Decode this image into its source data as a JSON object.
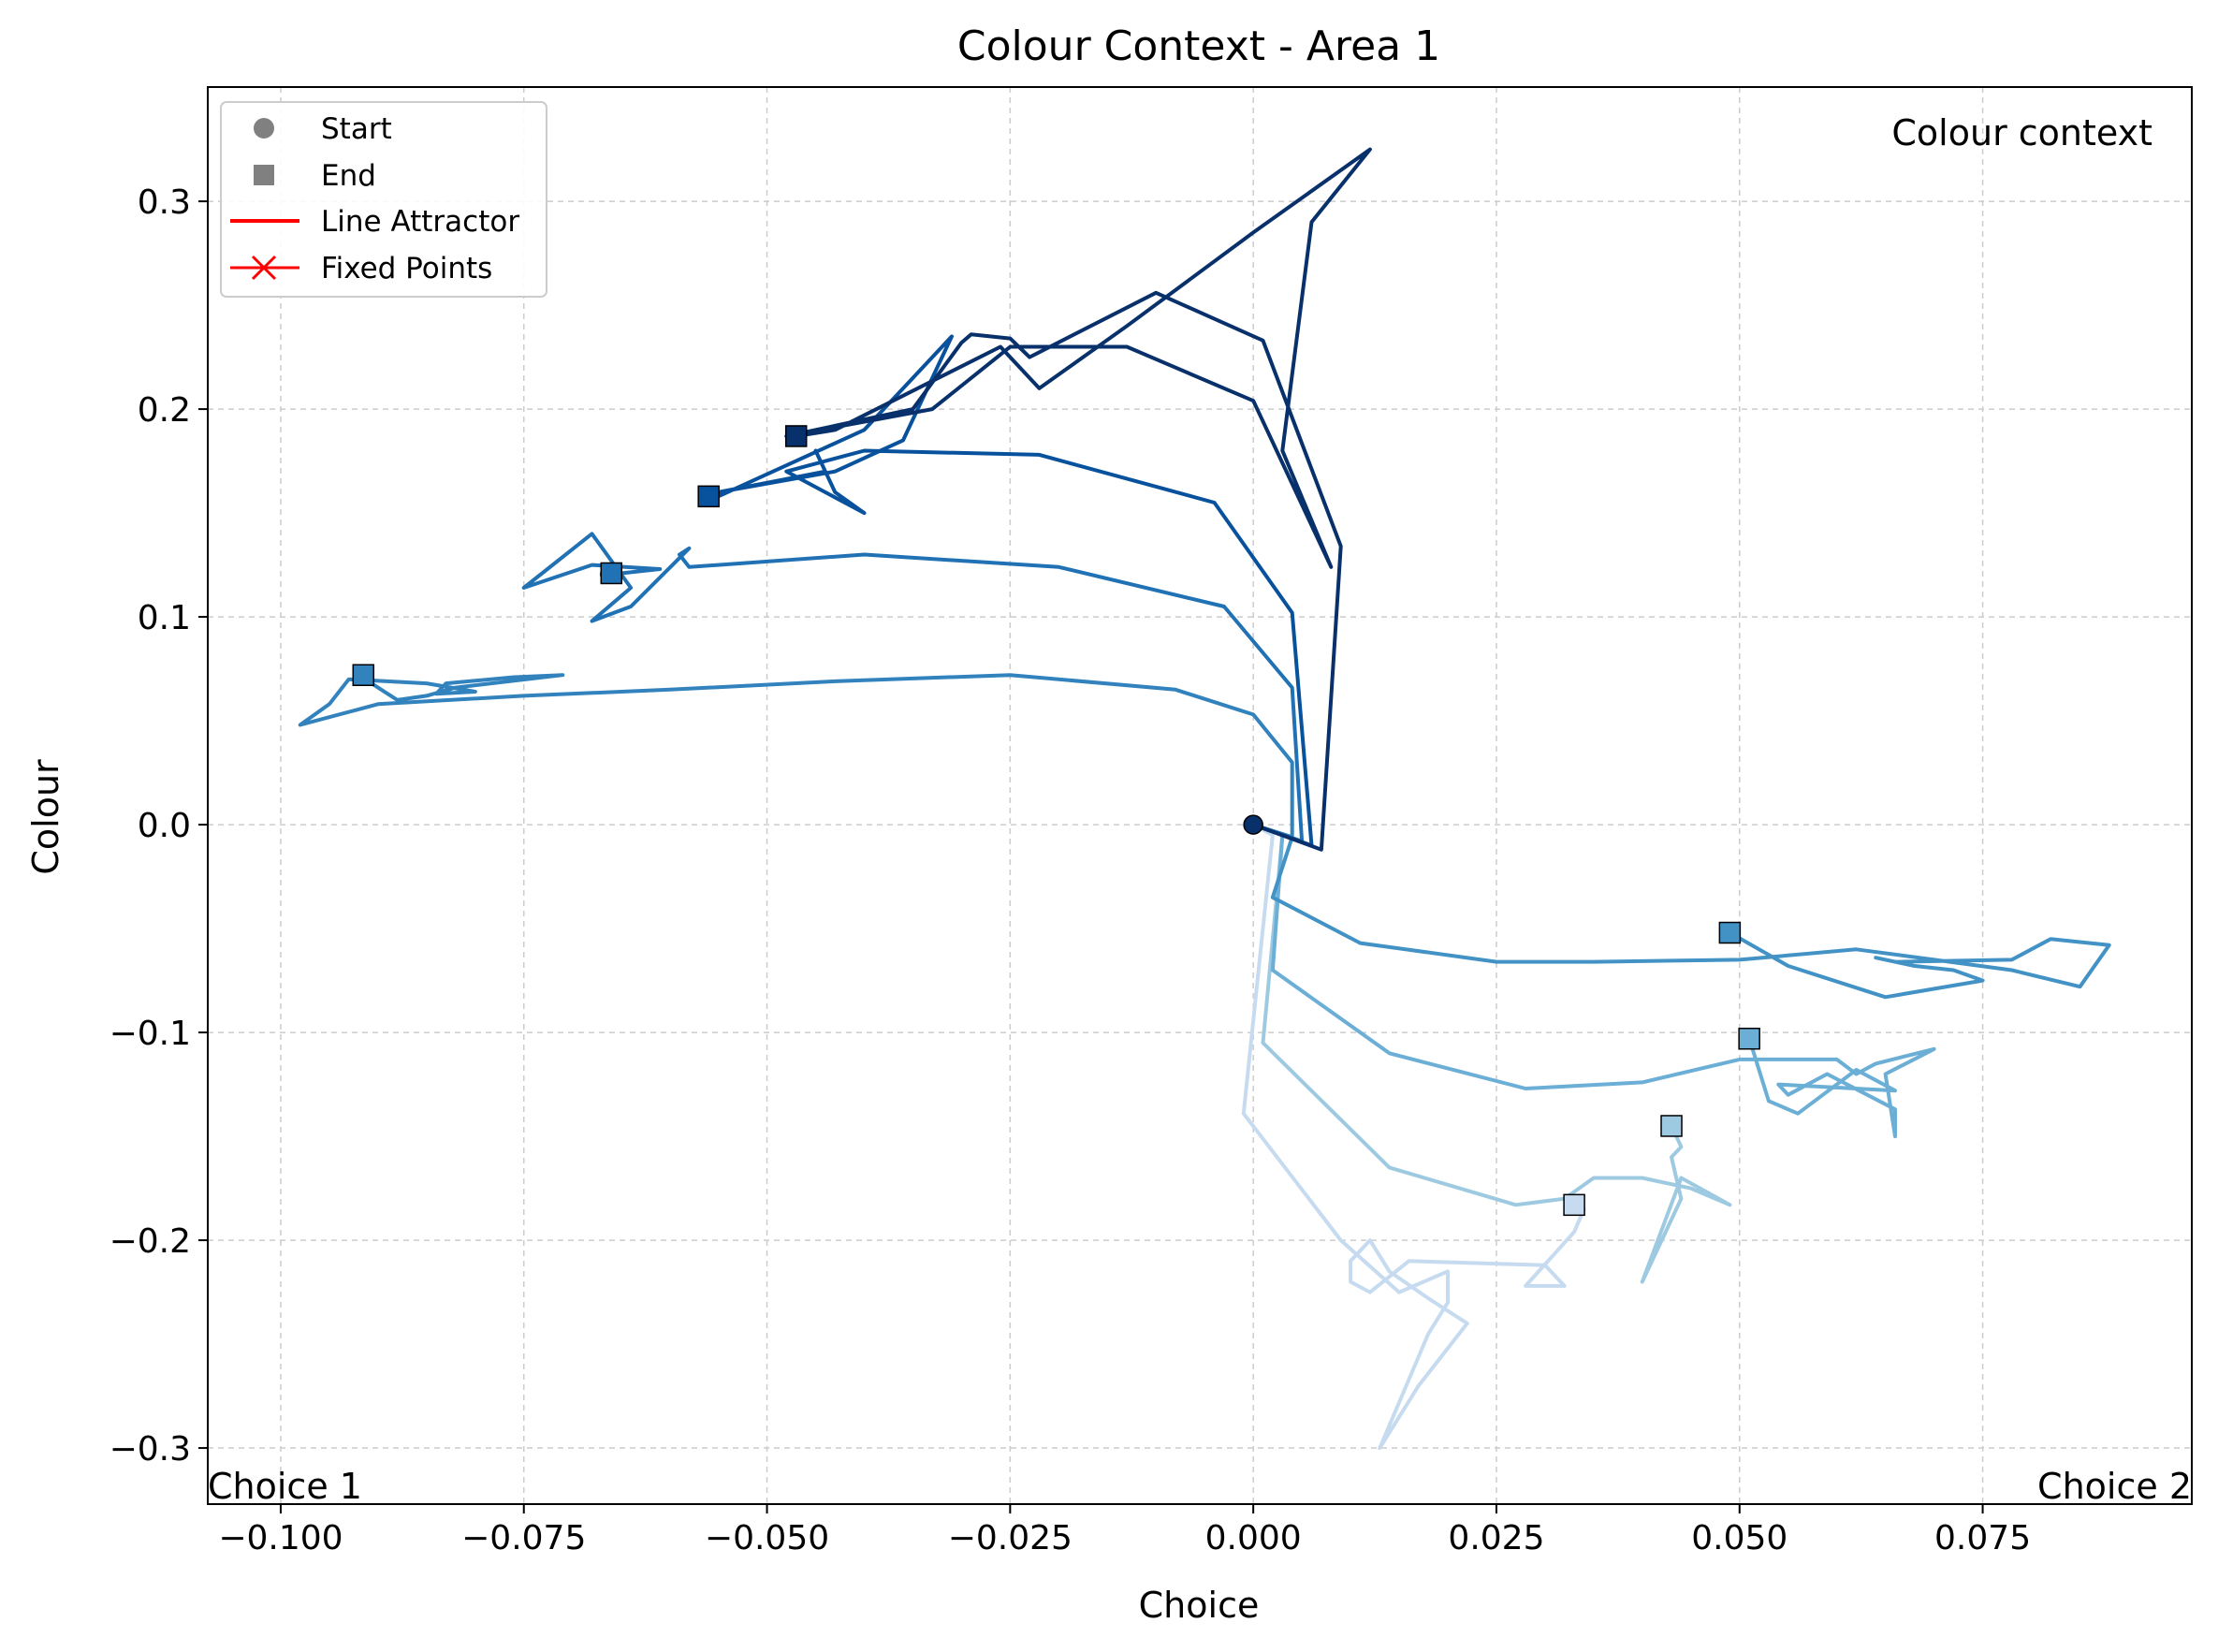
{
  "chart_data": {
    "type": "line",
    "title": "Colour Context - Area 1",
    "xlabel": "Choice",
    "ylabel": "Colour",
    "xlim": [
      -0.1075,
      0.0965
    ],
    "ylim": [
      -0.327,
      0.355
    ],
    "xticks": [
      -0.1,
      -0.075,
      -0.05,
      -0.025,
      0.0,
      0.025,
      0.05,
      0.075
    ],
    "xtick_labels": [
      "−0.100",
      "−0.075",
      "−0.050",
      "−0.025",
      "0.000",
      "0.025",
      "0.050",
      "0.075"
    ],
    "yticks": [
      -0.3,
      -0.2,
      -0.1,
      0.0,
      0.1,
      0.2,
      0.3
    ],
    "ytick_labels": [
      "−0.3",
      "−0.2",
      "−0.1",
      "0.0",
      "0.1",
      "0.2",
      "0.3"
    ],
    "grid": true,
    "legend_position": "top-left",
    "legend": [
      {
        "label": "Start",
        "marker": "circle",
        "color": "#808080"
      },
      {
        "label": "End",
        "marker": "square",
        "color": "#808080"
      },
      {
        "label": "Line Attractor",
        "marker": "line",
        "color": "#ff0000"
      },
      {
        "label": "Fixed Points",
        "marker": "x-line",
        "color": "#ff0000"
      }
    ],
    "annotations": {
      "context": "Colour context",
      "choice1": "Choice 1",
      "choice2": "Choice 2"
    },
    "start_point": [
      0.0,
      0.0
    ],
    "series": [
      {
        "color": "#08306b",
        "points": [
          [
            0.0,
            0.0
          ],
          [
            0.007,
            -0.012
          ],
          [
            0.009,
            0.134
          ],
          [
            0.001,
            0.233
          ],
          [
            -0.01,
            0.256
          ],
          [
            -0.023,
            0.225
          ],
          [
            -0.025,
            0.234
          ],
          [
            -0.029,
            0.236
          ],
          [
            -0.03,
            0.232
          ],
          [
            -0.035,
            0.2
          ],
          [
            -0.048,
            0.187
          ],
          [
            -0.033,
            0.2
          ],
          [
            -0.025,
            0.23
          ],
          [
            -0.013,
            0.23
          ],
          [
            0.0,
            0.204
          ],
          [
            0.008,
            0.124
          ],
          [
            0.003,
            0.18
          ],
          [
            0.006,
            0.29
          ],
          [
            0.012,
            0.325
          ],
          [
            0.0,
            0.285
          ],
          [
            -0.013,
            0.24
          ],
          [
            -0.022,
            0.21
          ],
          [
            -0.026,
            0.23
          ],
          [
            -0.043,
            0.19
          ],
          [
            -0.047,
            0.187
          ]
        ]
      },
      {
        "color": "#08519c",
        "points": [
          [
            0.0,
            0.0
          ],
          [
            0.006,
            -0.01
          ],
          [
            0.004,
            0.102
          ],
          [
            -0.004,
            0.155
          ],
          [
            -0.022,
            0.178
          ],
          [
            -0.04,
            0.18
          ],
          [
            -0.048,
            0.17
          ],
          [
            -0.04,
            0.15
          ],
          [
            -0.043,
            0.16
          ],
          [
            -0.045,
            0.18
          ],
          [
            -0.044,
            0.17
          ],
          [
            -0.055,
            0.16
          ],
          [
            -0.043,
            0.17
          ],
          [
            -0.036,
            0.185
          ],
          [
            -0.031,
            0.235
          ],
          [
            -0.04,
            0.19
          ],
          [
            -0.055,
            0.158
          ],
          [
            -0.056,
            0.158
          ]
        ]
      },
      {
        "color": "#2171b5",
        "points": [
          [
            0.0,
            0.0
          ],
          [
            0.005,
            -0.008
          ],
          [
            0.004,
            0.066
          ],
          [
            -0.003,
            0.105
          ],
          [
            -0.02,
            0.124
          ],
          [
            -0.04,
            0.13
          ],
          [
            -0.058,
            0.124
          ],
          [
            -0.059,
            0.13
          ],
          [
            -0.058,
            0.133
          ],
          [
            -0.064,
            0.105
          ],
          [
            -0.068,
            0.098
          ],
          [
            -0.064,
            0.114
          ],
          [
            -0.068,
            0.14
          ],
          [
            -0.075,
            0.114
          ],
          [
            -0.068,
            0.125
          ],
          [
            -0.061,
            0.123
          ],
          [
            -0.067,
            0.12
          ],
          [
            -0.067,
            0.121
          ],
          [
            -0.066,
            0.121
          ]
        ]
      },
      {
        "color": "#3182bd",
        "points": [
          [
            0.0,
            0.0
          ],
          [
            0.004,
            -0.006
          ],
          [
            0.004,
            0.03
          ],
          [
            -0.0,
            0.053
          ],
          [
            -0.008,
            0.065
          ],
          [
            -0.025,
            0.072
          ],
          [
            -0.043,
            0.069
          ],
          [
            -0.06,
            0.065
          ],
          [
            -0.075,
            0.062
          ],
          [
            -0.09,
            0.058
          ],
          [
            -0.098,
            0.048
          ],
          [
            -0.095,
            0.058
          ],
          [
            -0.093,
            0.07
          ],
          [
            -0.085,
            0.068
          ],
          [
            -0.08,
            0.064
          ],
          [
            -0.084,
            0.063
          ],
          [
            -0.083,
            0.068
          ],
          [
            -0.076,
            0.071
          ],
          [
            -0.071,
            0.072
          ],
          [
            -0.082,
            0.066
          ],
          [
            -0.085,
            0.062
          ],
          [
            -0.088,
            0.06
          ],
          [
            -0.092,
            0.072
          ],
          [
            -0.0915,
            0.072
          ]
        ]
      },
      {
        "color": "#4292c6",
        "points": [
          [
            0.0,
            0.0
          ],
          [
            0.004,
            -0.006
          ],
          [
            0.002,
            -0.035
          ],
          [
            0.011,
            -0.057
          ],
          [
            0.025,
            -0.066
          ],
          [
            0.035,
            -0.066
          ],
          [
            0.05,
            -0.065
          ],
          [
            0.062,
            -0.06
          ],
          [
            0.07,
            -0.065
          ],
          [
            0.078,
            -0.07
          ],
          [
            0.085,
            -0.078
          ],
          [
            0.088,
            -0.058
          ],
          [
            0.082,
            -0.055
          ],
          [
            0.078,
            -0.065
          ],
          [
            0.066,
            -0.066
          ],
          [
            0.064,
            -0.064
          ],
          [
            0.068,
            -0.068
          ],
          [
            0.072,
            -0.07
          ],
          [
            0.075,
            -0.075
          ],
          [
            0.065,
            -0.083
          ],
          [
            0.055,
            -0.068
          ],
          [
            0.049,
            -0.052
          ]
        ]
      },
      {
        "color": "#6baed6",
        "points": [
          [
            0.0,
            0.0
          ],
          [
            0.003,
            -0.005
          ],
          [
            0.002,
            -0.07
          ],
          [
            0.014,
            -0.11
          ],
          [
            0.028,
            -0.127
          ],
          [
            0.04,
            -0.124
          ],
          [
            0.05,
            -0.113
          ],
          [
            0.06,
            -0.113
          ],
          [
            0.062,
            -0.12
          ],
          [
            0.064,
            -0.115
          ],
          [
            0.07,
            -0.108
          ],
          [
            0.065,
            -0.12
          ],
          [
            0.066,
            -0.15
          ],
          [
            0.066,
            -0.137
          ],
          [
            0.059,
            -0.12
          ],
          [
            0.055,
            -0.13
          ],
          [
            0.054,
            -0.125
          ],
          [
            0.066,
            -0.128
          ],
          [
            0.062,
            -0.118
          ],
          [
            0.056,
            -0.139
          ],
          [
            0.053,
            -0.133
          ],
          [
            0.051,
            -0.103
          ]
        ]
      },
      {
        "color": "#9ecae1",
        "points": [
          [
            0.0,
            0.0
          ],
          [
            0.003,
            -0.005
          ],
          [
            0.001,
            -0.105
          ],
          [
            0.014,
            -0.165
          ],
          [
            0.027,
            -0.183
          ],
          [
            0.032,
            -0.18
          ],
          [
            0.035,
            -0.17
          ],
          [
            0.04,
            -0.17
          ],
          [
            0.045,
            -0.175
          ],
          [
            0.049,
            -0.183
          ],
          [
            0.044,
            -0.17
          ],
          [
            0.04,
            -0.22
          ],
          [
            0.042,
            -0.2
          ],
          [
            0.044,
            -0.18
          ],
          [
            0.043,
            -0.16
          ],
          [
            0.044,
            -0.155
          ],
          [
            0.043,
            -0.145
          ]
        ]
      },
      {
        "color": "#c6dbef",
        "points": [
          [
            0.0,
            0.0
          ],
          [
            0.002,
            -0.005
          ],
          [
            -0.001,
            -0.139
          ],
          [
            0.009,
            -0.2
          ],
          [
            0.015,
            -0.225
          ],
          [
            0.02,
            -0.215
          ],
          [
            0.02,
            -0.23
          ],
          [
            0.018,
            -0.245
          ],
          [
            0.013,
            -0.3
          ],
          [
            0.017,
            -0.27
          ],
          [
            0.022,
            -0.24
          ],
          [
            0.018,
            -0.228
          ],
          [
            0.014,
            -0.215
          ],
          [
            0.012,
            -0.2
          ],
          [
            0.01,
            -0.21
          ],
          [
            0.01,
            -0.22
          ],
          [
            0.012,
            -0.225
          ],
          [
            0.016,
            -0.21
          ],
          [
            0.03,
            -0.212
          ],
          [
            0.032,
            -0.222
          ],
          [
            0.028,
            -0.222
          ],
          [
            0.033,
            -0.196
          ],
          [
            0.034,
            -0.185
          ],
          [
            0.033,
            -0.183
          ]
        ]
      }
    ]
  }
}
